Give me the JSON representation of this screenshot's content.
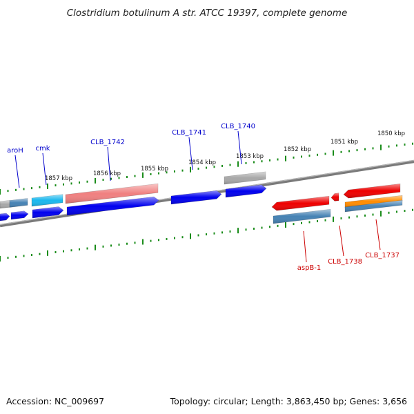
{
  "title": "Clostridium botulinum A str. ATCC 19397, complete genome",
  "footer": {
    "accession": "Accession: NC_009697",
    "summary": "Topology: circular; Length: 3,863,450 bp; Genes: 3,656"
  },
  "colors": {
    "backbone": "#7a7a7a",
    "tick": "#1a8c1a",
    "label_forward": "#0000cc",
    "label_reverse": "#cc0000",
    "gene_blue": "#0000ee",
    "gene_cyan": "#1ab8ee",
    "gene_steel": "#4682b4",
    "gene_pink": "#f08080",
    "gene_gray": "#a8a8a8",
    "gene_red": "#ee0000",
    "gene_orange": "#ff8c00"
  },
  "scale_labels": [
    "1857 kbp",
    "1856 kbp",
    "1855 kbp",
    "1854 kbp",
    "1853 kbp",
    "1852 kbp",
    "1851 kbp",
    "1850 kbp"
  ],
  "gene_labels": {
    "forward": [
      "aroH",
      "cmk",
      "CLB_1742",
      "CLB_1741",
      "CLB_1740"
    ],
    "reverse": [
      "aspB-1",
      "CLB_1738",
      "CLB_1737"
    ]
  }
}
